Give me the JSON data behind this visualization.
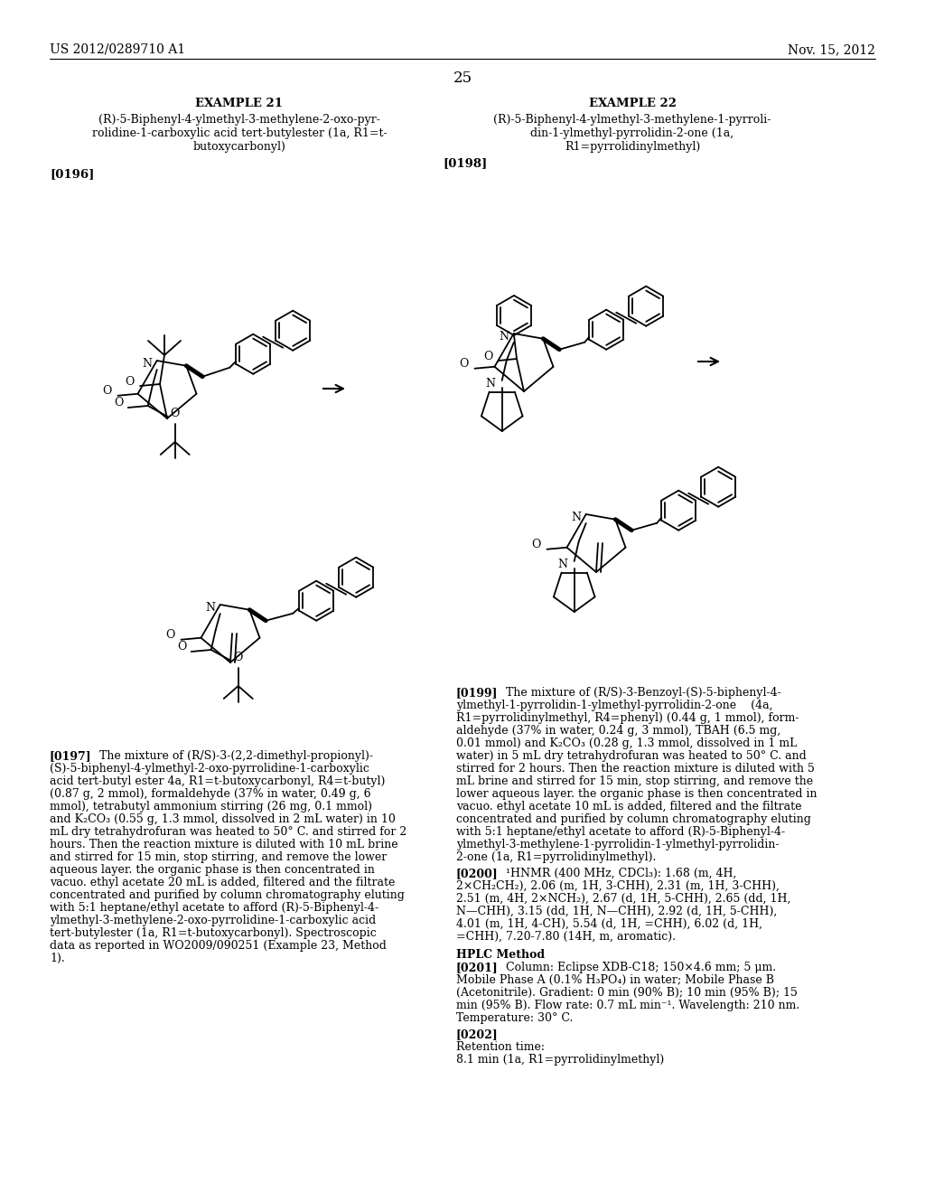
{
  "page_number": "25",
  "header_left": "US 2012/0289710 A1",
  "header_right": "Nov. 15, 2012",
  "background_color": "#ffffff",
  "example21_title": "EXAMPLE 21",
  "example21_subtitle_lines": [
    "(R)-5-Biphenyl-4-ylmethyl-3-methylene-2-oxo-pyr-",
    "rolidine-1-carboxylic acid tert-butylester (1a, R1=t-",
    "butoxycarbonyl)"
  ],
  "example21_ref": "[0196]",
  "example22_title": "EXAMPLE 22",
  "example22_subtitle_lines": [
    "(R)-5-Biphenyl-4-ylmethyl-3-methylene-1-pyrroli-",
    "din-1-ylmethyl-pyrrolidin-2-one (1a,",
    "R1=pyrrolidinylmethyl)"
  ],
  "example22_ref": "[0198]",
  "para197_label": "[0197]",
  "para197_lines": [
    "The mixture of (R/S)-3-(2,2-dimethyl-propionyl)-",
    "(S)-5-biphenyl-4-ylmethyl-2-oxo-pyrrolidine-1-carboxylic",
    "acid tert-butyl ester 4a, R1=t-butoxycarbonyl, R4=t-butyl)",
    "(0.87 g, 2 mmol), formaldehyde (37% in water, 0.49 g, 6",
    "mmol), tetrabutyl ammonium stirring (26 mg, 0.1 mmol)",
    "and K₂CO₃ (0.55 g, 1.3 mmol, dissolved in 2 mL water) in 10",
    "mL dry tetrahydrofuran was heated to 50° C. and stirred for 2",
    "hours. Then the reaction mixture is diluted with 10 mL brine",
    "and stirred for 15 min, stop stirring, and remove the lower",
    "aqueous layer. the organic phase is then concentrated in",
    "vacuo. ethyl acetate 20 mL is added, filtered and the filtrate",
    "concentrated and purified by column chromatography eluting",
    "with 5:1 heptane/ethyl acetate to afford (R)-5-Biphenyl-4-",
    "ylmethyl-3-methylene-2-oxo-pyrrolidine-1-carboxylic acid",
    "tert-butylester (1a, R1=t-butoxycarbonyl). Spectroscopic",
    "data as reported in WO2009/090251 (Example 23, Method",
    "1)."
  ],
  "para199_label": "[0199]",
  "para199_lines": [
    "The mixture of (R/S)-3-Benzoyl-(S)-5-biphenyl-4-",
    "ylmethyl-1-pyrrolidin-1-ylmethyl-pyrrolidin-2-one    (4a,",
    "R1=pyrrolidinylmethyl, R4=phenyl) (0.44 g, 1 mmol), form-",
    "aldehyde (37% in water, 0.24 g, 3 mmol), TBAH (6.5 mg,",
    "0.01 mmol) and K₂CO₃ (0.28 g, 1.3 mmol, dissolved in 1 mL",
    "water) in 5 mL dry tetrahydrofuran was heated to 50° C. and",
    "stirred for 2 hours. Then the reaction mixture is diluted with 5",
    "mL brine and stirred for 15 min, stop stirring, and remove the",
    "lower aqueous layer. the organic phase is then concentrated in",
    "vacuo. ethyl acetate 10 mL is added, filtered and the filtrate",
    "concentrated and purified by column chromatography eluting",
    "with 5:1 heptane/ethyl acetate to afford (R)-5-Biphenyl-4-",
    "ylmethyl-3-methylene-1-pyrrolidin-1-ylmethyl-pyrrolidin-",
    "2-one (1a, R1=pyrrolidinylmethyl)."
  ],
  "para200_label": "[0200]",
  "para200_lines": [
    "¹HNMR (400 MHz, CDCl₃): 1.68 (m, 4H,",
    "2×CH₂CH₂), 2.06 (m, 1H, 3-CHH), 2.31 (m, 1H, 3-CHH),",
    "2.51 (m, 4H, 2×NCH₂), 2.67 (d, 1H, 5-CHH), 2.65 (dd, 1H,",
    "N—CHH), 3.15 (dd, 1H, N—CHH), 2.92 (d, 1H, 5-CHH),",
    "4.01 (m, 1H, 4-CH), 5.54 (d, 1H, =CHH), 6.02 (d, 1H,",
    "=CHH), 7.20-7.80 (14H, m, aromatic)."
  ],
  "hplc_title": "HPLC Method",
  "para201_label": "[0201]",
  "para201_lines": [
    "Column: Eclipse XDB-C18; 150×4.6 mm; 5 μm.",
    "Mobile Phase A (0.1% H₃PO₄) in water; Mobile Phase B",
    "(Acetonitrile). Gradient: 0 min (90% B); 10 min (95% B); 15",
    "min (95% B). Flow rate: 0.7 mL min⁻¹. Wavelength: 210 nm.",
    "Temperature: 30° C."
  ],
  "para202_label": "[0202]",
  "para202_lines": [
    "Retention time:",
    "8.1 min (1a, R1=pyrrolidinylmethyl)"
  ]
}
